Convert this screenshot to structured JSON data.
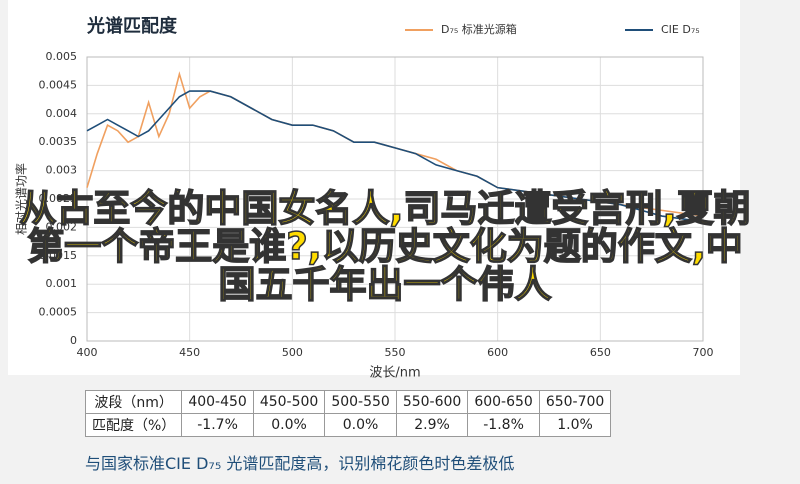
{
  "chart_data": {
    "type": "line",
    "title": "光谱匹配度",
    "x_label": "波长/nm",
    "y_label": "相对光谱功率",
    "x": [
      400,
      405,
      410,
      415,
      420,
      425,
      430,
      435,
      440,
      445,
      450,
      455,
      460,
      470,
      480,
      490,
      500,
      510,
      520,
      530,
      540,
      550,
      560,
      570,
      580,
      590,
      600,
      620,
      640,
      660,
      680,
      700
    ],
    "series": [
      {
        "name": "D₇₅ 标准光源箱",
        "color": "#f0a060",
        "values": [
          0.0027,
          0.0033,
          0.0038,
          0.0037,
          0.0035,
          0.0036,
          0.0042,
          0.0036,
          0.004,
          0.0047,
          0.0041,
          0.0043,
          0.0044,
          0.0043,
          0.0041,
          0.0039,
          0.0038,
          0.0038,
          0.0037,
          0.0035,
          0.0035,
          0.0034,
          0.0033,
          0.0032,
          0.003,
          0.0029,
          0.0027,
          0.0026,
          0.0025,
          0.0024,
          0.0023,
          0.0022
        ]
      },
      {
        "name": "CIE D₇₅",
        "color": "#1f4e79",
        "values": [
          0.0037,
          0.0038,
          0.0039,
          0.0038,
          0.0037,
          0.0036,
          0.0037,
          0.0039,
          0.0041,
          0.0043,
          0.0044,
          0.0044,
          0.0044,
          0.0043,
          0.0041,
          0.0039,
          0.0038,
          0.0038,
          0.0037,
          0.0035,
          0.0035,
          0.0034,
          0.0033,
          0.0031,
          0.003,
          0.0029,
          0.0027,
          0.0026,
          0.0025,
          0.0024,
          0.0022,
          0.0021
        ]
      }
    ],
    "xlim": [
      400,
      700
    ],
    "xticks": [
      400,
      450,
      500,
      550,
      600,
      650,
      700
    ],
    "ylim": [
      0,
      0.005
    ],
    "yticks": [
      0,
      0.0005,
      0.001,
      0.0015,
      0.002,
      0.0025,
      0.003,
      0.0035,
      0.004,
      0.0045,
      0.005
    ],
    "grid": true,
    "legend": "top-right"
  },
  "table": {
    "rows": [
      [
        "波段（nm）",
        "400-450",
        "450-500",
        "500-550",
        "550-600",
        "600-650",
        "650-700"
      ],
      [
        "匹配度（%）",
        "-1.7%",
        "0.0%",
        "0.0%",
        "2.9%",
        "-1.8%",
        "1.0%"
      ]
    ]
  },
  "caption": "与国家标准CIE D₇₅ 光谱匹配度高，识别棉花颜色时色差极低",
  "overlay": "从古至今的中国女名人,司马迁遭受宫刑,夏朝第一个帝王是谁?,以历史文化为题的作文,中国五千年出一个伟人"
}
